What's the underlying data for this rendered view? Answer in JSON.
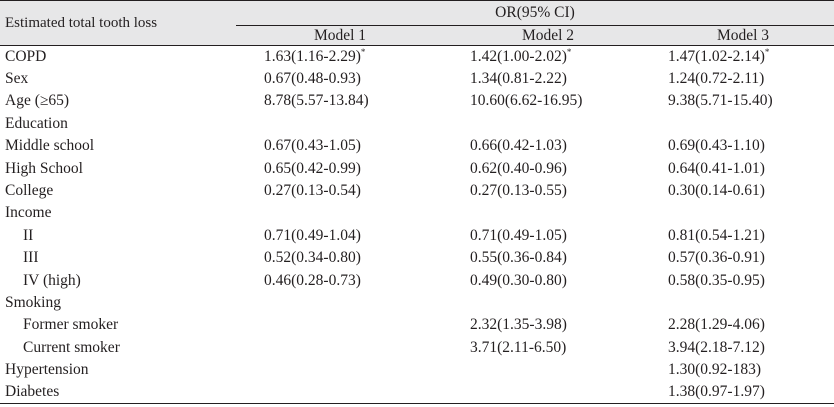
{
  "table": {
    "row_header": "Estimated total tooth loss",
    "group_header": "OR(95% CI)",
    "models": [
      "Model 1",
      "Model 2",
      "Model 3"
    ],
    "rows": [
      {
        "label": "COPD",
        "indent": false,
        "m1": "1.63(1.16-2.29)",
        "m1_sup": "*",
        "m2": "1.42(1.00-2.02)",
        "m2_sup": "*",
        "m3": "1.47(1.02-2.14)",
        "m3_sup": "*"
      },
      {
        "label": "Sex",
        "indent": false,
        "m1": "0.67(0.48-0.93)",
        "m1_sup": "",
        "m2": "1.34(0.81-2.22)",
        "m2_sup": "",
        "m3": "1.24(0.72-2.11)",
        "m3_sup": ""
      },
      {
        "label": "Age (≥65)",
        "indent": false,
        "m1": "8.78(5.57-13.84)",
        "m1_sup": "",
        "m2": "10.60(6.62-16.95)",
        "m2_sup": "",
        "m3": "9.38(5.71-15.40)",
        "m3_sup": ""
      },
      {
        "label": "Education",
        "indent": false,
        "m1": "",
        "m1_sup": "",
        "m2": "",
        "m2_sup": "",
        "m3": "",
        "m3_sup": ""
      },
      {
        "label": "Middle school",
        "indent": false,
        "m1": "0.67(0.43-1.05)",
        "m1_sup": "",
        "m2": "0.66(0.42-1.03)",
        "m2_sup": "",
        "m3": "0.69(0.43-1.10)",
        "m3_sup": ""
      },
      {
        "label": "High School",
        "indent": false,
        "m1": "0.65(0.42-0.99)",
        "m1_sup": "",
        "m2": "0.62(0.40-0.96)",
        "m2_sup": "",
        "m3": "0.64(0.41-1.01)",
        "m3_sup": ""
      },
      {
        "label": "College",
        "indent": false,
        "m1": "0.27(0.13-0.54)",
        "m1_sup": "",
        "m2": "0.27(0.13-0.55)",
        "m2_sup": "",
        "m3": "0.30(0.14-0.61)",
        "m3_sup": ""
      },
      {
        "label": "Income",
        "indent": false,
        "m1": "",
        "m1_sup": "",
        "m2": "",
        "m2_sup": "",
        "m3": "",
        "m3_sup": ""
      },
      {
        "label": "II",
        "indent": true,
        "m1": "0.71(0.49-1.04)",
        "m1_sup": "",
        "m2": "0.71(0.49-1.05)",
        "m2_sup": "",
        "m3": "0.81(0.54-1.21)",
        "m3_sup": ""
      },
      {
        "label": "III",
        "indent": true,
        "m1": "0.52(0.34-0.80)",
        "m1_sup": "",
        "m2": "0.55(0.36-0.84)",
        "m2_sup": "",
        "m3": "0.57(0.36-0.91)",
        "m3_sup": ""
      },
      {
        "label": "IV (high)",
        "indent": true,
        "m1": "0.46(0.28-0.73)",
        "m1_sup": "",
        "m2": "0.49(0.30-0.80)",
        "m2_sup": "",
        "m3": "0.58(0.35-0.95)",
        "m3_sup": ""
      },
      {
        "label": "Smoking",
        "indent": false,
        "m1": "",
        "m1_sup": "",
        "m2": "",
        "m2_sup": "",
        "m3": "",
        "m3_sup": ""
      },
      {
        "label": "Former smoker",
        "indent": true,
        "m1": "",
        "m1_sup": "",
        "m2": "2.32(1.35-3.98)",
        "m2_sup": "",
        "m3": "2.28(1.29-4.06)",
        "m3_sup": ""
      },
      {
        "label": "Current smoker",
        "indent": true,
        "m1": "",
        "m1_sup": "",
        "m2": "3.71(2.11-6.50)",
        "m2_sup": "",
        "m3": "3.94(2.18-7.12)",
        "m3_sup": ""
      },
      {
        "label": "Hypertension",
        "indent": false,
        "m1": "",
        "m1_sup": "",
        "m2": "",
        "m2_sup": "",
        "m3": "1.30(0.92-183)",
        "m3_sup": ""
      },
      {
        "label": "Diabetes",
        "indent": false,
        "m1": "",
        "m1_sup": "",
        "m2": "",
        "m2_sup": "",
        "m3": "1.38(0.97-1.97)",
        "m3_sup": ""
      }
    ]
  }
}
